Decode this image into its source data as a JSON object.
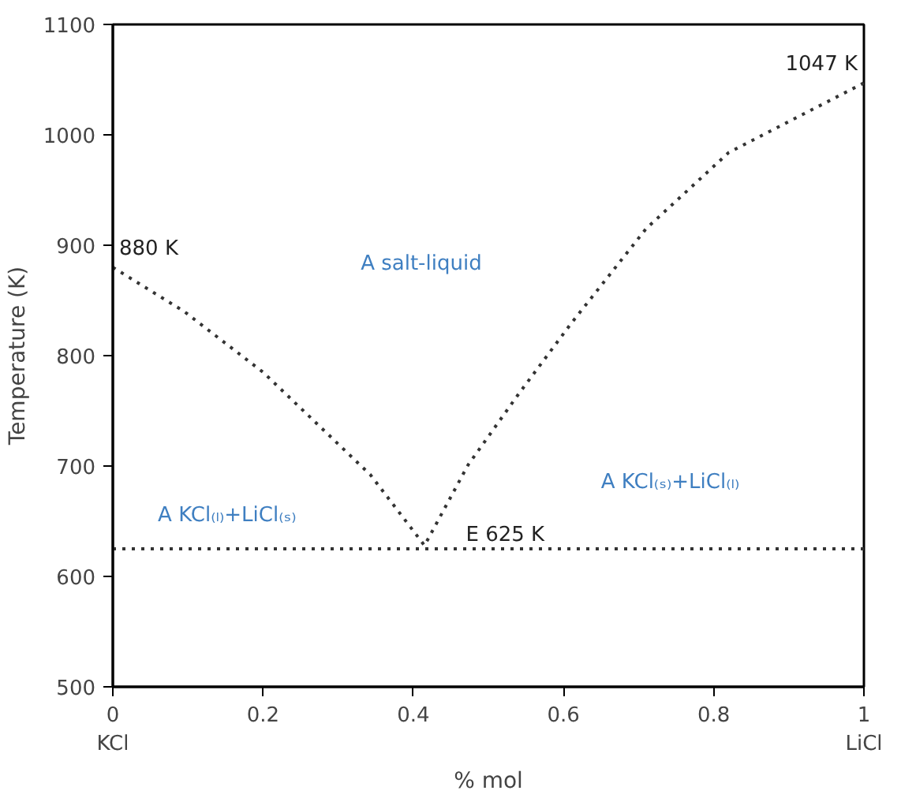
{
  "chart_data": {
    "type": "line",
    "xlabel": "% mol",
    "ylabel": "Temperature (K)",
    "xlim": [
      0,
      1
    ],
    "ylim": [
      500,
      1100
    ],
    "xticks": [
      {
        "value": 0,
        "label": "0\nKCl"
      },
      0.2,
      0.4,
      0.6,
      0.8,
      {
        "value": 1,
        "label": "1\nLiCl"
      }
    ],
    "yticks": [
      500,
      600,
      700,
      800,
      900,
      1000,
      1100
    ],
    "grid": false,
    "marker": "none",
    "line_style": "dotted",
    "series": [
      {
        "color": "#333333",
        "x": [
          0,
          0.095,
          0.2,
          0.343,
          0.415,
          0.473,
          0.54,
          0.61,
          0.71,
          0.82,
          1.0
        ],
        "values": [
          880,
          840,
          785,
          692,
          628,
          701,
          765,
          829,
          915,
          984,
          1047
        ]
      }
    ],
    "ref_lines": [
      {
        "axis": "y",
        "value": 625,
        "label": "E 625 K",
        "color": "#333333",
        "line_style": "dotted"
      }
    ],
    "annotations": [
      {
        "text": "880 K",
        "x": 0,
        "y": 880
      },
      {
        "text": "1047 K",
        "x": 1,
        "y": 1047
      },
      "A salt-liquid",
      "A KCl₍ₛ₎+LiCl₍ₗ₎",
      "A KCl₍ₗ₎+LiCl₍ₛ₎"
    ]
  }
}
